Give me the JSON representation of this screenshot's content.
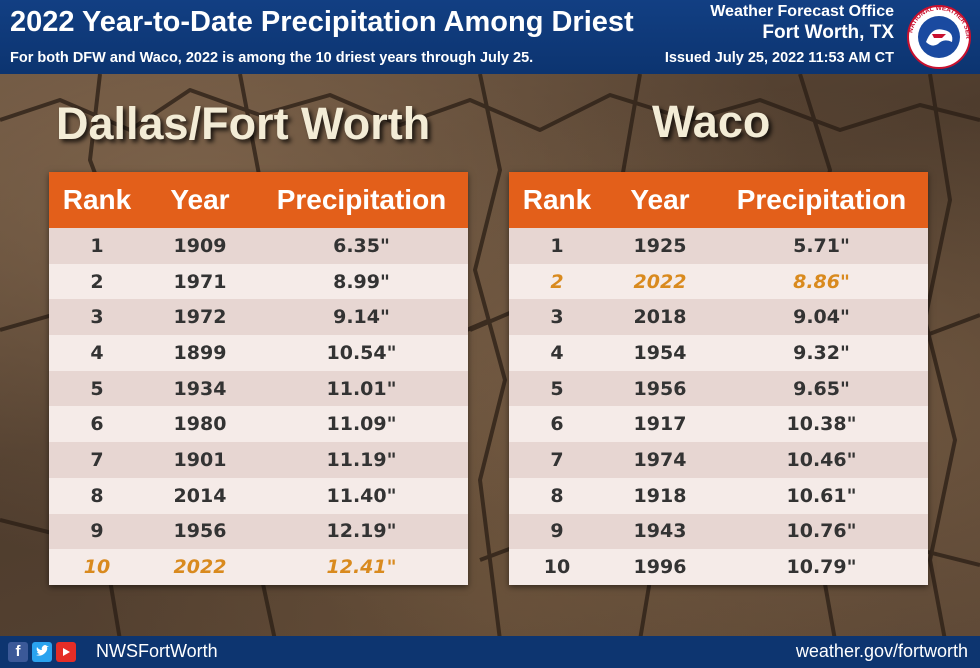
{
  "header": {
    "title": "2022 Year-to-Date Precipitation Among Driest",
    "subtitle": "For both DFW and Waco, 2022 is among the 10 driest years through July 25.",
    "office_line1": "Weather Forecast Office",
    "office_line2": "Fort Worth, TX",
    "issued": "Issued July 25, 2022 11:53 AM CT",
    "logo_text": "NATIONAL WEATHER SERVICE"
  },
  "colors": {
    "header_bg": "#0c3470",
    "table_header": "#e35f1a",
    "row_odd": "#e7d6d2",
    "row_even": "#f5ebe8",
    "highlight": "#d98a1e"
  },
  "chart_data": [
    {
      "type": "table",
      "title": "Dallas/Fort Worth",
      "columns": [
        "Rank",
        "Year",
        "Precipitation"
      ],
      "rows": [
        [
          "1",
          "1909",
          "6.35\""
        ],
        [
          "2",
          "1971",
          "8.99\""
        ],
        [
          "3",
          "1972",
          "9.14\""
        ],
        [
          "4",
          "1899",
          "10.54\""
        ],
        [
          "5",
          "1934",
          "11.01\""
        ],
        [
          "6",
          "1980",
          "11.09\""
        ],
        [
          "7",
          "1901",
          "11.19\""
        ],
        [
          "8",
          "2014",
          "11.40\""
        ],
        [
          "9",
          "1956",
          "12.19\""
        ],
        [
          "10",
          "2022",
          "12.41\""
        ]
      ],
      "highlight_rank": "10"
    },
    {
      "type": "table",
      "title": "Waco",
      "columns": [
        "Rank",
        "Year",
        "Precipitation"
      ],
      "rows": [
        [
          "1",
          "1925",
          "5.71\""
        ],
        [
          "2",
          "2022",
          "8.86\""
        ],
        [
          "3",
          "2018",
          "9.04\""
        ],
        [
          "4",
          "1954",
          "9.32\""
        ],
        [
          "5",
          "1956",
          "9.65\""
        ],
        [
          "6",
          "1917",
          "10.38\""
        ],
        [
          "7",
          "1974",
          "10.46\""
        ],
        [
          "8",
          "1918",
          "10.61\""
        ],
        [
          "9",
          "1943",
          "10.76\""
        ],
        [
          "10",
          "1996",
          "10.79\""
        ]
      ],
      "highlight_rank": "2"
    }
  ],
  "footer": {
    "social_icons": [
      "facebook-icon",
      "twitter-icon",
      "youtube-icon"
    ],
    "handle": "NWSFortWorth",
    "url": "weather.gov/fortworth"
  }
}
